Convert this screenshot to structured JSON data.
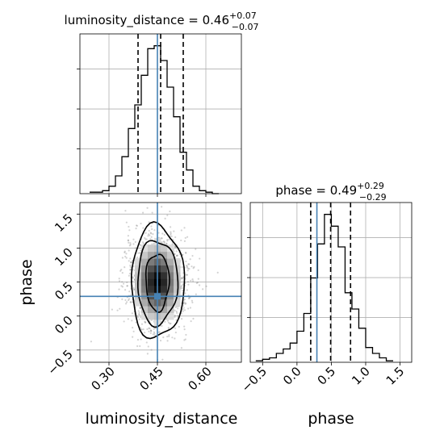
{
  "chart_data": {
    "type": "corner",
    "grid": true,
    "colors": {
      "truth": "#4682b4",
      "hist": "#000000",
      "quantile": "#000000",
      "scatter": "#808080"
    },
    "parameters": [
      {
        "name": "luminosity_distance",
        "title_label": "luminosity_distance",
        "title_value": "0.46",
        "title_plus": "+0.07",
        "title_minus": "−0.07",
        "quantiles": [
          0.39,
          0.46,
          0.53
        ],
        "truth": 0.45,
        "range": [
          0.21,
          0.71
        ],
        "ticks": [
          0.3,
          0.45,
          0.6
        ],
        "tick_labels": [
          "0.30",
          "0.45",
          "0.60"
        ],
        "axis_label": "luminosity_distance"
      },
      {
        "name": "phase",
        "title_label": "phase",
        "title_value": "0.49",
        "title_plus": "+0.29",
        "title_minus": "−0.29",
        "quantiles": [
          0.2,
          0.49,
          0.78
        ],
        "truth": 0.29,
        "range": [
          -0.68,
          1.67
        ],
        "ticks": [
          -0.5,
          0.0,
          0.5,
          1.0,
          1.5
        ],
        "tick_labels": [
          "−0.5",
          "0.0",
          "0.5",
          "1.0",
          "1.5"
        ],
        "axis_label": "phase"
      }
    ],
    "hist_luminosity_distance": {
      "edges": [
        0.24,
        0.26,
        0.28,
        0.3,
        0.32,
        0.34,
        0.36,
        0.38,
        0.4,
        0.42,
        0.44,
        0.46,
        0.48,
        0.5,
        0.52,
        0.54,
        0.56,
        0.58,
        0.6,
        0.62,
        0.64
      ],
      "counts": [
        1,
        1,
        2,
        5,
        12,
        25,
        44,
        60,
        80,
        98,
        100,
        90,
        72,
        52,
        28,
        16,
        5,
        2,
        1,
        0
      ]
    },
    "hist_phase": {
      "edges": [
        -0.6,
        -0.5,
        -0.4,
        -0.3,
        -0.2,
        -0.1,
        0.0,
        0.1,
        0.2,
        0.3,
        0.4,
        0.5,
        0.6,
        0.7,
        0.8,
        0.9,
        1.0,
        1.1,
        1.2,
        1.3,
        1.4
      ],
      "counts": [
        1,
        2,
        3,
        6,
        9,
        13,
        21,
        33,
        57,
        80,
        100,
        92,
        78,
        47,
        36,
        23,
        10,
        6,
        3,
        1
      ]
    },
    "contours": [
      {
        "level": 0.39,
        "rx": 0.036,
        "ry": 0.42
      },
      {
        "level": 0.86,
        "rx": 0.062,
        "ry": 0.62
      },
      {
        "level": 0.99,
        "rx": 0.082,
        "ry": 0.83
      }
    ],
    "density_center": [
      0.45,
      0.5
    ]
  }
}
